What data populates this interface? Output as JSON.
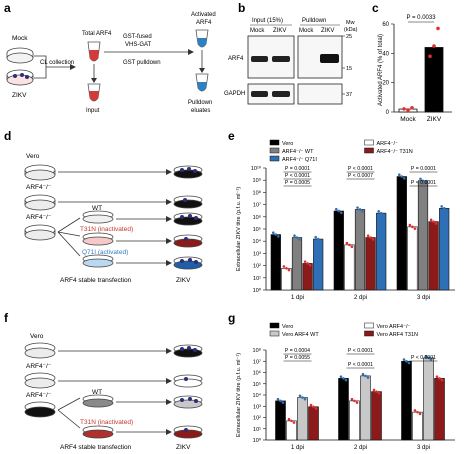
{
  "panels": {
    "a": {
      "letter": "a",
      "labels": {
        "mock": "Mock",
        "zikv": "ZIKV",
        "cl_collection": "CL collection",
        "total_arf4": "Total ARF4",
        "input": "Input",
        "gst_fused": "GST-fused",
        "vhs_gat": "VHS-GAT",
        "gst_pulldown": "GST pulldown",
        "activated": "Activated",
        "arf4": "ARF4",
        "pulldown": "Pulldown",
        "eluates": "eluates"
      }
    },
    "b": {
      "letter": "b",
      "labels": {
        "input_header": "Input (15%)",
        "pulldown_header": "Pulldown",
        "mock": "Mock",
        "zikv": "ZIKV",
        "mw": "Mw",
        "kda": "(kDa)",
        "arf4": "ARF4",
        "gapdh": "GAPDH",
        "mw25": "25",
        "mw15": "15",
        "mw37": "37"
      }
    },
    "c": {
      "letter": "c",
      "pvalue": "P = 0.0033"
    },
    "d": {
      "letter": "d",
      "labels": {
        "vero": "Vero",
        "arf4_ko": "ARF4⁻/⁻",
        "arf4_ko2": "ARF4⁻/⁻",
        "wt": "WT",
        "t31n": "T31N (inactivated)",
        "q71l": "Q71I (activated)",
        "stable": "ARF4 stable transfection",
        "zikv": "ZIKV"
      },
      "colors": {
        "t31n": "#c0392b",
        "q71l": "#2f7fc1"
      }
    },
    "e": {
      "letter": "e",
      "pvalues": [
        "P = 0.0001",
        "P < 0.0001",
        "P = 0.0005",
        "P < 0.0001",
        "P < 0.0007",
        "P < 0.0001",
        "P = 0.0001"
      ]
    },
    "f": {
      "letter": "f",
      "labels": {
        "vero": "Vero",
        "arf4_ko": "ARF4⁻/⁻",
        "arf4_ko2": "ARF4⁻/⁻",
        "wt": "WT",
        "t31n": "T31N (inactivated)",
        "stable": "ARF4 stable transfection",
        "zikv": "ZIKV"
      },
      "colors": {
        "t31n": "#c0392b"
      }
    },
    "g": {
      "letter": "g",
      "pvalues": [
        "P = 0.0004",
        "P = 0.0055",
        "P < 0.0001",
        "P < 0.0001",
        "P < 0.0001"
      ]
    }
  },
  "chart_data": [
    {
      "id": "c",
      "type": "bar",
      "categories": [
        "Mock",
        "ZIKV"
      ],
      "values": [
        2.0,
        44
      ],
      "points": [
        [
          2.1,
          1.3,
          2.9
        ],
        [
          38,
          45,
          57
        ]
      ],
      "colors": [
        "#ffffff",
        "#000000"
      ],
      "point_color": "#e03030",
      "ylabel": "Activated ARF4 (% of total)",
      "ylim": [
        0,
        60
      ],
      "yticks": [
        0,
        20,
        40,
        60
      ],
      "pvalue": "P = 0.0033"
    },
    {
      "id": "e",
      "type": "bar",
      "scale": "log",
      "categories": [
        "1 dpi",
        "2 dpi",
        "3 dpi"
      ],
      "ylabel": "Extracellular ZIKV titre (p.f.u. ml⁻¹)",
      "ylim": [
        1,
        10000000000
      ],
      "ytick_labels": [
        "10⁰",
        "10¹",
        "10²",
        "10³",
        "10⁴",
        "10⁵",
        "10⁶",
        "10⁷",
        "10⁸",
        "10⁹",
        "10¹⁰"
      ],
      "legend": [
        {
          "name": "Vero",
          "color": "#000000"
        },
        {
          "name": "ARF4⁻/⁻",
          "color": "#ffffff"
        },
        {
          "name": "ARF4⁻/⁻ WT",
          "color": "#808080"
        },
        {
          "name": "ARF4⁻/⁻ T31N",
          "color": "#8b1a1a"
        },
        {
          "name": "ARF4⁻/⁻ Q71I",
          "color": "#2f6fb5"
        }
      ],
      "series": [
        {
          "name": "Vero",
          "color": "#000000",
          "point_color": "#2f6fb5",
          "values": [
            35000,
            3000000,
            2000000000
          ]
        },
        {
          "name": "ARF4⁻/⁻",
          "color": "#ffffff",
          "point_color": "#e03030",
          "values": [
            60,
            5000,
            150000
          ]
        },
        {
          "name": "ARF4⁻/⁻ WT",
          "color": "#808080",
          "point_color": "#2f6fb5",
          "values": [
            20000,
            4000000,
            900000000
          ]
        },
        {
          "name": "ARF4⁻/⁻ T31N",
          "color": "#8b1a1a",
          "point_color": "#e03030",
          "values": [
            150,
            20000,
            400000
          ]
        },
        {
          "name": "ARF4⁻/⁻ Q71I",
          "color": "#2f6fb5",
          "point_color": "#2f6fb5",
          "values": [
            15000,
            2000000,
            5000000
          ]
        }
      ]
    },
    {
      "id": "g",
      "type": "bar",
      "scale": "log",
      "categories": [
        "1 dpi",
        "2 dpi",
        "3 dpi"
      ],
      "ylabel": "Extracellular ZIKV titre (p.f.u. ml⁻¹)",
      "ylim": [
        1,
        100000000
      ],
      "ytick_labels": [
        "10⁰",
        "10¹",
        "10²",
        "10³",
        "10⁴",
        "10⁵",
        "10⁶",
        "10⁷",
        "10⁸"
      ],
      "legend": [
        {
          "name": "Vero",
          "color": "#000000"
        },
        {
          "name": "Vero ARF4⁻/⁻",
          "color": "#ffffff"
        },
        {
          "name": "Vero ARF4 WT",
          "color": "#c8c8c8"
        },
        {
          "name": "Vero ARF4 T31N",
          "color": "#8b1a1a"
        }
      ],
      "series": [
        {
          "name": "Vero",
          "color": "#000000",
          "point_color": "#2f6fb5",
          "values": [
            3000,
            300000,
            10000000
          ]
        },
        {
          "name": "Vero ARF4⁻/⁻",
          "color": "#ffffff",
          "point_color": "#e03030",
          "values": [
            50,
            3000,
            300
          ]
        },
        {
          "name": "Vero ARF4 WT",
          "color": "#c8c8c8",
          "point_color": "#2f6fb5",
          "values": [
            6000,
            500000,
            20000000
          ]
        },
        {
          "name": "Vero ARF4 T31N",
          "color": "#8b1a1a",
          "point_color": "#e03030",
          "values": [
            900,
            20000,
            300000
          ]
        }
      ]
    }
  ]
}
